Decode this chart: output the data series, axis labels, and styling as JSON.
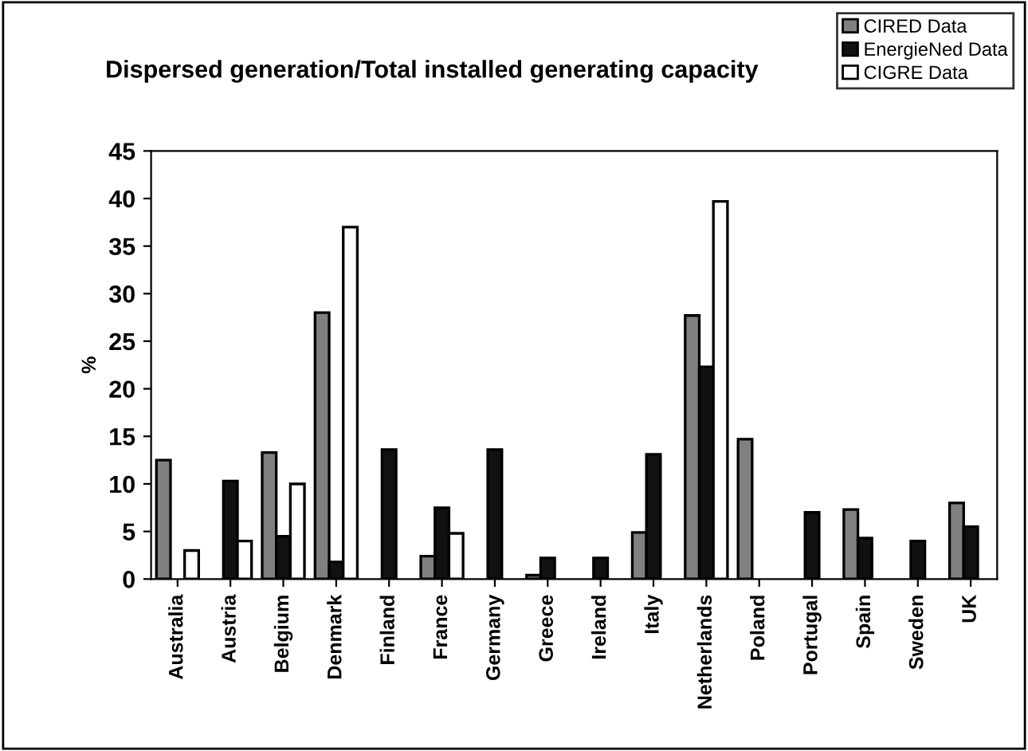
{
  "chart_data": {
    "type": "bar",
    "title": "Dispersed generation/Total installed generating capacity",
    "ylabel": "%",
    "categories": [
      "Australia",
      "Austria",
      "Belgium",
      "Denmark",
      "Finland",
      "France",
      "Germany",
      "Greece",
      "Ireland",
      "Italy",
      "Netherlands",
      "Poland",
      "Portugal",
      "Spain",
      "Sweden",
      "UK"
    ],
    "series": [
      {
        "name": "CIRED Data",
        "color": "#808080",
        "values": [
          12.5,
          null,
          13.3,
          28,
          null,
          2.4,
          null,
          0.4,
          null,
          4.9,
          27.7,
          14.7,
          null,
          7.3,
          null,
          8.0
        ]
      },
      {
        "name": "EnergieNed Data",
        "color": "#111111",
        "values": [
          null,
          10.3,
          4.5,
          1.8,
          13.6,
          7.5,
          13.6,
          2.2,
          2.2,
          13.1,
          22.3,
          null,
          7.0,
          4.3,
          4.0,
          5.5
        ]
      },
      {
        "name": "CIGRE Data",
        "color": "#ffffff",
        "values": [
          3,
          4,
          10,
          37,
          null,
          4.8,
          null,
          null,
          null,
          null,
          39.7,
          null,
          null,
          null,
          null,
          null
        ]
      }
    ],
    "ylim": [
      0,
      45
    ],
    "yticks": [
      0,
      5,
      10,
      15,
      20,
      25,
      30,
      35,
      40,
      45
    ],
    "grid": false,
    "legend": "top right"
  }
}
